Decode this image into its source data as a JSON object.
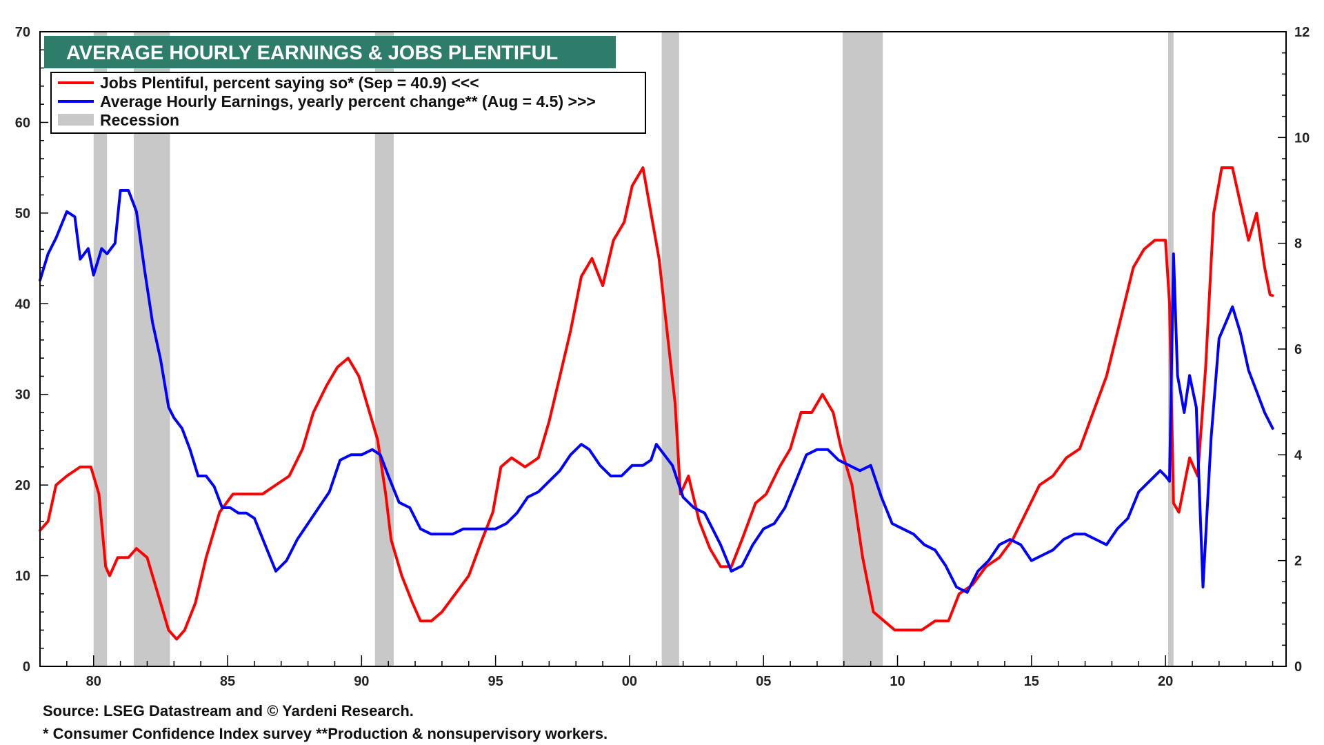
{
  "chart_data": {
    "type": "line",
    "title": "AVERAGE HOURLY EARNINGS & JOBS PLENTIFUL",
    "x_tick_labels": [
      "80",
      "85",
      "90",
      "95",
      "00",
      "05",
      "10",
      "15",
      "20"
    ],
    "x_tick_years": [
      1980,
      1985,
      1990,
      1995,
      2000,
      2005,
      2010,
      2015,
      2020
    ],
    "xlim": [
      1978.0,
      2024.5
    ],
    "y_left_ticks": [
      0,
      10,
      20,
      30,
      40,
      50,
      60,
      70
    ],
    "y_left_tick_labels": [
      "0",
      "10",
      "20",
      "30",
      "40",
      "50",
      "60",
      "70"
    ],
    "y_left_lim": [
      0,
      70
    ],
    "y_right_ticks": [
      0,
      2,
      4,
      6,
      8,
      10,
      12
    ],
    "y_right_tick_labels": [
      "0",
      "2",
      "4",
      "6",
      "8",
      "10",
      "12"
    ],
    "y_right_lim": [
      0,
      12
    ],
    "legend": [
      {
        "label": "Jobs Plentiful, percent saying so* (Sep = 40.9) <<<",
        "color": "#ff0000"
      },
      {
        "label": "Average Hourly Earnings, yearly percent change** (Aug = 4.5) >>>",
        "color": "#0000ff"
      },
      {
        "label": "Recession",
        "color": "#c8c8c8"
      }
    ],
    "recessions": [
      [
        1980.0,
        1980.5
      ],
      [
        1981.5,
        1982.85
      ],
      [
        1990.5,
        1991.2
      ],
      [
        2001.2,
        2001.85
      ],
      [
        2007.95,
        2009.45
      ],
      [
        2020.1,
        2020.3
      ]
    ],
    "series": [
      {
        "name": "Jobs Plentiful, percent saying so* (Sep = 40.9)",
        "axis": "left",
        "color": "#ff0000",
        "points": [
          [
            1978.0,
            15
          ],
          [
            1978.3,
            16
          ],
          [
            1978.6,
            20
          ],
          [
            1979.0,
            21
          ],
          [
            1979.5,
            22
          ],
          [
            1979.9,
            22
          ],
          [
            1980.2,
            19
          ],
          [
            1980.45,
            11
          ],
          [
            1980.6,
            10
          ],
          [
            1980.9,
            12
          ],
          [
            1981.3,
            12
          ],
          [
            1981.6,
            13
          ],
          [
            1982.0,
            12
          ],
          [
            1982.4,
            8
          ],
          [
            1982.8,
            4
          ],
          [
            1983.1,
            3
          ],
          [
            1983.4,
            4
          ],
          [
            1983.8,
            7
          ],
          [
            1984.2,
            12
          ],
          [
            1984.7,
            17
          ],
          [
            1985.2,
            19
          ],
          [
            1985.8,
            19
          ],
          [
            1986.3,
            19
          ],
          [
            1986.8,
            20
          ],
          [
            1987.3,
            21
          ],
          [
            1987.8,
            24
          ],
          [
            1988.2,
            28
          ],
          [
            1988.7,
            31
          ],
          [
            1989.1,
            33
          ],
          [
            1989.5,
            34
          ],
          [
            1989.9,
            32
          ],
          [
            1990.2,
            29
          ],
          [
            1990.6,
            25
          ],
          [
            1990.9,
            19
          ],
          [
            1991.1,
            14
          ],
          [
            1991.5,
            10
          ],
          [
            1991.9,
            7
          ],
          [
            1992.2,
            5
          ],
          [
            1992.6,
            5
          ],
          [
            1993.0,
            6
          ],
          [
            1993.5,
            8
          ],
          [
            1994.0,
            10
          ],
          [
            1994.5,
            14
          ],
          [
            1994.9,
            17
          ],
          [
            1995.2,
            22
          ],
          [
            1995.6,
            23
          ],
          [
            1996.1,
            22
          ],
          [
            1996.6,
            23
          ],
          [
            1997.0,
            27
          ],
          [
            1997.4,
            32
          ],
          [
            1997.8,
            37
          ],
          [
            1998.2,
            43
          ],
          [
            1998.6,
            45
          ],
          [
            1999.0,
            42
          ],
          [
            1999.4,
            47
          ],
          [
            1999.8,
            49
          ],
          [
            2000.1,
            53
          ],
          [
            2000.5,
            55
          ],
          [
            2000.8,
            50
          ],
          [
            2001.1,
            45
          ],
          [
            2001.4,
            37
          ],
          [
            2001.7,
            29
          ],
          [
            2001.9,
            19
          ],
          [
            2002.2,
            21
          ],
          [
            2002.6,
            16
          ],
          [
            2003.0,
            13
          ],
          [
            2003.4,
            11
          ],
          [
            2003.8,
            11
          ],
          [
            2004.2,
            14
          ],
          [
            2004.7,
            18
          ],
          [
            2005.1,
            19
          ],
          [
            2005.6,
            22
          ],
          [
            2006.0,
            24
          ],
          [
            2006.4,
            28
          ],
          [
            2006.8,
            28
          ],
          [
            2007.2,
            30
          ],
          [
            2007.6,
            28
          ],
          [
            2007.9,
            24
          ],
          [
            2008.3,
            20
          ],
          [
            2008.7,
            12
          ],
          [
            2009.1,
            6
          ],
          [
            2009.5,
            5
          ],
          [
            2009.9,
            4
          ],
          [
            2010.4,
            4
          ],
          [
            2010.9,
            4
          ],
          [
            2011.4,
            5
          ],
          [
            2011.9,
            5
          ],
          [
            2012.3,
            8
          ],
          [
            2012.8,
            9
          ],
          [
            2013.3,
            11
          ],
          [
            2013.8,
            12
          ],
          [
            2014.3,
            14
          ],
          [
            2014.8,
            17
          ],
          [
            2015.3,
            20
          ],
          [
            2015.8,
            21
          ],
          [
            2016.3,
            23
          ],
          [
            2016.8,
            24
          ],
          [
            2017.3,
            28
          ],
          [
            2017.8,
            32
          ],
          [
            2018.3,
            38
          ],
          [
            2018.8,
            44
          ],
          [
            2019.2,
            46
          ],
          [
            2019.6,
            47
          ],
          [
            2020.0,
            47
          ],
          [
            2020.15,
            40
          ],
          [
            2020.3,
            18
          ],
          [
            2020.5,
            17
          ],
          [
            2020.9,
            23
          ],
          [
            2021.2,
            21
          ],
          [
            2021.5,
            33
          ],
          [
            2021.8,
            50
          ],
          [
            2022.1,
            55
          ],
          [
            2022.5,
            55
          ],
          [
            2022.8,
            51
          ],
          [
            2023.1,
            47
          ],
          [
            2023.4,
            50
          ],
          [
            2023.7,
            44
          ],
          [
            2023.9,
            41
          ],
          [
            2024.0,
            40.9
          ]
        ]
      },
      {
        "name": "Average Hourly Earnings, yearly percent change** (Aug = 4.5)",
        "axis": "right",
        "color": "#0000ff",
        "points": [
          [
            1978.0,
            7.3
          ],
          [
            1978.3,
            7.8
          ],
          [
            1978.6,
            8.1
          ],
          [
            1979.0,
            8.6
          ],
          [
            1979.3,
            8.5
          ],
          [
            1979.5,
            7.7
          ],
          [
            1979.8,
            7.9
          ],
          [
            1980.0,
            7.4
          ],
          [
            1980.3,
            7.9
          ],
          [
            1980.5,
            7.8
          ],
          [
            1980.8,
            8.0
          ],
          [
            1981.0,
            9.0
          ],
          [
            1981.3,
            9.0
          ],
          [
            1981.6,
            8.6
          ],
          [
            1981.9,
            7.5
          ],
          [
            1982.2,
            6.5
          ],
          [
            1982.5,
            5.8
          ],
          [
            1982.8,
            4.9
          ],
          [
            1983.0,
            4.7
          ],
          [
            1983.3,
            4.5
          ],
          [
            1983.6,
            4.1
          ],
          [
            1983.9,
            3.6
          ],
          [
            1984.2,
            3.6
          ],
          [
            1984.5,
            3.4
          ],
          [
            1984.8,
            3.0
          ],
          [
            1985.1,
            3.0
          ],
          [
            1985.4,
            2.9
          ],
          [
            1985.7,
            2.9
          ],
          [
            1986.0,
            2.8
          ],
          [
            1986.4,
            2.3
          ],
          [
            1986.8,
            1.8
          ],
          [
            1987.2,
            2.0
          ],
          [
            1987.6,
            2.4
          ],
          [
            1988.0,
            2.7
          ],
          [
            1988.4,
            3.0
          ],
          [
            1988.8,
            3.3
          ],
          [
            1989.2,
            3.9
          ],
          [
            1989.6,
            4.0
          ],
          [
            1990.0,
            4.0
          ],
          [
            1990.4,
            4.1
          ],
          [
            1990.7,
            4.0
          ],
          [
            1991.0,
            3.6
          ],
          [
            1991.4,
            3.1
          ],
          [
            1991.8,
            3.0
          ],
          [
            1992.2,
            2.6
          ],
          [
            1992.6,
            2.5
          ],
          [
            1993.0,
            2.5
          ],
          [
            1993.4,
            2.5
          ],
          [
            1993.8,
            2.6
          ],
          [
            1994.2,
            2.6
          ],
          [
            1994.6,
            2.6
          ],
          [
            1995.0,
            2.6
          ],
          [
            1995.4,
            2.7
          ],
          [
            1995.8,
            2.9
          ],
          [
            1996.2,
            3.2
          ],
          [
            1996.6,
            3.3
          ],
          [
            1997.0,
            3.5
          ],
          [
            1997.4,
            3.7
          ],
          [
            1997.8,
            4.0
          ],
          [
            1998.2,
            4.2
          ],
          [
            1998.5,
            4.1
          ],
          [
            1998.9,
            3.8
          ],
          [
            1999.3,
            3.6
          ],
          [
            1999.7,
            3.6
          ],
          [
            2000.1,
            3.8
          ],
          [
            2000.5,
            3.8
          ],
          [
            2000.8,
            3.9
          ],
          [
            2001.0,
            4.2
          ],
          [
            2001.3,
            4.0
          ],
          [
            2001.6,
            3.8
          ],
          [
            2002.0,
            3.2
          ],
          [
            2002.4,
            3.0
          ],
          [
            2002.8,
            2.9
          ],
          [
            2003.1,
            2.6
          ],
          [
            2003.4,
            2.3
          ],
          [
            2003.8,
            1.8
          ],
          [
            2004.2,
            1.9
          ],
          [
            2004.6,
            2.3
          ],
          [
            2005.0,
            2.6
          ],
          [
            2005.4,
            2.7
          ],
          [
            2005.8,
            3.0
          ],
          [
            2006.2,
            3.5
          ],
          [
            2006.6,
            4.0
          ],
          [
            2007.0,
            4.1
          ],
          [
            2007.4,
            4.1
          ],
          [
            2007.8,
            3.9
          ],
          [
            2008.2,
            3.8
          ],
          [
            2008.6,
            3.7
          ],
          [
            2009.0,
            3.8
          ],
          [
            2009.4,
            3.2
          ],
          [
            2009.8,
            2.7
          ],
          [
            2010.2,
            2.6
          ],
          [
            2010.6,
            2.5
          ],
          [
            2011.0,
            2.3
          ],
          [
            2011.4,
            2.2
          ],
          [
            2011.8,
            1.9
          ],
          [
            2012.2,
            1.5
          ],
          [
            2012.6,
            1.4
          ],
          [
            2013.0,
            1.8
          ],
          [
            2013.4,
            2.0
          ],
          [
            2013.8,
            2.3
          ],
          [
            2014.2,
            2.4
          ],
          [
            2014.6,
            2.3
          ],
          [
            2015.0,
            2.0
          ],
          [
            2015.4,
            2.1
          ],
          [
            2015.8,
            2.2
          ],
          [
            2016.2,
            2.4
          ],
          [
            2016.6,
            2.5
          ],
          [
            2017.0,
            2.5
          ],
          [
            2017.4,
            2.4
          ],
          [
            2017.8,
            2.3
          ],
          [
            2018.2,
            2.6
          ],
          [
            2018.6,
            2.8
          ],
          [
            2019.0,
            3.3
          ],
          [
            2019.4,
            3.5
          ],
          [
            2019.8,
            3.7
          ],
          [
            2020.0,
            3.6
          ],
          [
            2020.15,
            3.5
          ],
          [
            2020.3,
            7.8
          ],
          [
            2020.45,
            5.5
          ],
          [
            2020.7,
            4.8
          ],
          [
            2020.9,
            5.5
          ],
          [
            2021.15,
            4.9
          ],
          [
            2021.4,
            1.5
          ],
          [
            2021.7,
            4.3
          ],
          [
            2022.0,
            6.2
          ],
          [
            2022.25,
            6.5
          ],
          [
            2022.5,
            6.8
          ],
          [
            2022.8,
            6.3
          ],
          [
            2023.1,
            5.6
          ],
          [
            2023.4,
            5.2
          ],
          [
            2023.7,
            4.8
          ],
          [
            2024.0,
            4.5
          ]
        ]
      }
    ]
  },
  "footer": {
    "source": "Source: LSEG Datastream and © Yardeni Research.",
    "note": "* Consumer Confidence Index survey **Production & nonsupervisory workers."
  }
}
